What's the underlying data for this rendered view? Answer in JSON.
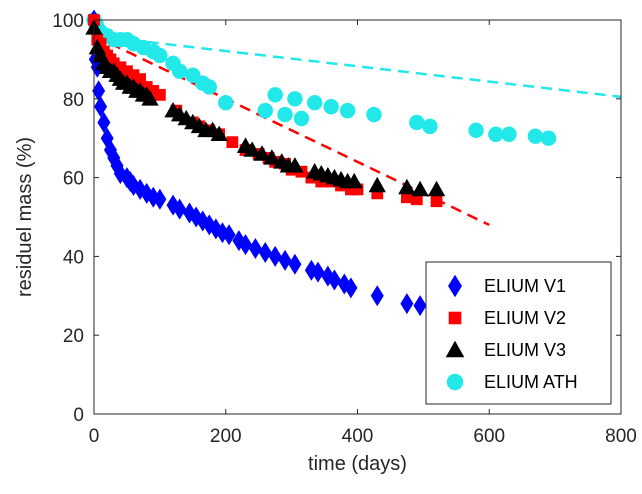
{
  "chart_data": {
    "type": "scatter",
    "xlabel": "time (days)",
    "ylabel": "residuel mass (%)",
    "xlim": [
      0,
      800
    ],
    "ylim": [
      0,
      100
    ],
    "xticks": [
      0,
      200,
      400,
      600,
      800
    ],
    "yticks": [
      0,
      20,
      40,
      60,
      80,
      100
    ],
    "grid": false,
    "legend_position": "bottom-right",
    "series": [
      {
        "name": "ELIUM V1",
        "marker": "diamond",
        "color": "#0000ff",
        "points": [
          [
            0,
            100
          ],
          [
            2,
            90
          ],
          [
            5,
            88
          ],
          [
            7,
            82
          ],
          [
            10,
            78
          ],
          [
            15,
            74
          ],
          [
            20,
            70
          ],
          [
            25,
            67
          ],
          [
            30,
            65
          ],
          [
            35,
            63
          ],
          [
            40,
            61
          ],
          [
            50,
            60
          ],
          [
            55,
            59
          ],
          [
            60,
            58
          ],
          [
            70,
            57
          ],
          [
            80,
            56
          ],
          [
            90,
            55
          ],
          [
            100,
            54.5
          ],
          [
            120,
            53
          ],
          [
            130,
            52
          ],
          [
            145,
            51
          ],
          [
            155,
            50
          ],
          [
            165,
            49
          ],
          [
            175,
            48
          ],
          [
            185,
            47
          ],
          [
            195,
            46
          ],
          [
            205,
            45.5
          ],
          [
            220,
            44
          ],
          [
            230,
            43
          ],
          [
            245,
            42
          ],
          [
            260,
            41
          ],
          [
            275,
            40
          ],
          [
            290,
            39
          ],
          [
            305,
            38
          ],
          [
            330,
            36.5
          ],
          [
            340,
            36
          ],
          [
            355,
            35
          ],
          [
            365,
            34
          ],
          [
            380,
            33
          ],
          [
            390,
            32
          ],
          [
            430,
            30
          ],
          [
            475,
            28
          ],
          [
            495,
            27.5
          ]
        ]
      },
      {
        "name": "ELIUM V2",
        "marker": "square",
        "color": "#ff0000",
        "points": [
          [
            0,
            100
          ],
          [
            5,
            95
          ],
          [
            10,
            94
          ],
          [
            15,
            92
          ],
          [
            20,
            91
          ],
          [
            25,
            90
          ],
          [
            30,
            89
          ],
          [
            40,
            88
          ],
          [
            50,
            87
          ],
          [
            60,
            86
          ],
          [
            70,
            85
          ],
          [
            80,
            83
          ],
          [
            90,
            82
          ],
          [
            100,
            81
          ],
          [
            125,
            77
          ],
          [
            150,
            74
          ],
          [
            160,
            73
          ],
          [
            175,
            72
          ],
          [
            190,
            71
          ],
          [
            210,
            69
          ],
          [
            230,
            67
          ],
          [
            250,
            66
          ],
          [
            265,
            65
          ],
          [
            275,
            64
          ],
          [
            290,
            63.5
          ],
          [
            300,
            62
          ],
          [
            315,
            61.5
          ],
          [
            330,
            60
          ],
          [
            345,
            59
          ],
          [
            360,
            59
          ],
          [
            375,
            58
          ],
          [
            390,
            57
          ],
          [
            400,
            57
          ],
          [
            430,
            56
          ],
          [
            475,
            55
          ],
          [
            490,
            54.5
          ],
          [
            520,
            54
          ]
        ]
      },
      {
        "name": "ELIUM V3",
        "marker": "triangle",
        "color": "#000000",
        "points": [
          [
            0,
            98
          ],
          [
            5,
            93
          ],
          [
            10,
            91
          ],
          [
            15,
            89
          ],
          [
            20,
            88
          ],
          [
            25,
            87
          ],
          [
            30,
            87
          ],
          [
            35,
            86
          ],
          [
            40,
            85
          ],
          [
            45,
            84
          ],
          [
            50,
            84
          ],
          [
            55,
            83
          ],
          [
            60,
            83
          ],
          [
            65,
            82
          ],
          [
            70,
            82
          ],
          [
            75,
            81
          ],
          [
            80,
            81
          ],
          [
            85,
            80
          ],
          [
            120,
            77
          ],
          [
            130,
            76
          ],
          [
            140,
            75
          ],
          [
            150,
            74
          ],
          [
            160,
            73
          ],
          [
            170,
            72
          ],
          [
            180,
            72
          ],
          [
            190,
            71
          ],
          [
            230,
            68
          ],
          [
            240,
            67
          ],
          [
            255,
            66
          ],
          [
            270,
            65
          ],
          [
            285,
            64
          ],
          [
            295,
            63
          ],
          [
            305,
            63
          ],
          [
            335,
            61.5
          ],
          [
            345,
            61
          ],
          [
            355,
            60.5
          ],
          [
            365,
            60
          ],
          [
            375,
            59.5
          ],
          [
            385,
            59
          ],
          [
            395,
            59
          ],
          [
            430,
            58
          ],
          [
            475,
            57.5
          ],
          [
            495,
            57
          ],
          [
            520,
            57
          ]
        ]
      },
      {
        "name": "ELIUM ATH",
        "marker": "circle",
        "color": "#22e8ea",
        "points": [
          [
            0,
            100
          ],
          [
            3,
            99
          ],
          [
            5,
            98
          ],
          [
            10,
            97
          ],
          [
            15,
            96
          ],
          [
            20,
            96
          ],
          [
            30,
            95
          ],
          [
            40,
            95
          ],
          [
            50,
            95
          ],
          [
            60,
            94
          ],
          [
            75,
            93
          ],
          [
            90,
            92
          ],
          [
            100,
            91
          ],
          [
            120,
            89
          ],
          [
            130,
            87
          ],
          [
            150,
            86
          ],
          [
            165,
            84
          ],
          [
            175,
            83
          ],
          [
            200,
            79
          ],
          [
            260,
            77
          ],
          [
            275,
            81
          ],
          [
            290,
            76
          ],
          [
            305,
            80
          ],
          [
            315,
            75
          ],
          [
            335,
            79
          ],
          [
            360,
            78
          ],
          [
            385,
            77
          ],
          [
            425,
            76
          ],
          [
            490,
            74
          ],
          [
            510,
            73
          ],
          [
            580,
            72
          ],
          [
            610,
            71
          ],
          [
            630,
            71
          ],
          [
            670,
            70.5
          ],
          [
            690,
            70
          ]
        ]
      }
    ],
    "fit_lines": [
      {
        "color": "#ff0000",
        "points": [
          [
            0,
            96
          ],
          [
            600,
            48
          ]
        ]
      },
      {
        "color": "#22e8ea",
        "points": [
          [
            0,
            96
          ],
          [
            800,
            80.5
          ]
        ]
      }
    ]
  }
}
